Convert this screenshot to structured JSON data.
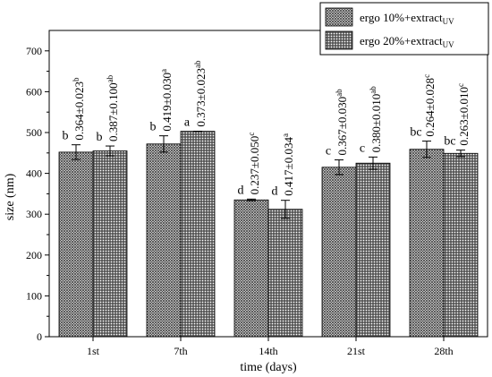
{
  "chart_data": {
    "type": "bar",
    "xlabel": "time (days)",
    "ylabel": "size (nm)",
    "ylim": [
      0,
      750
    ],
    "yticks": [
      0,
      100,
      200,
      300,
      400,
      500,
      600,
      700
    ],
    "categories": [
      "1st",
      "7th",
      "14th",
      "21st",
      "28th"
    ],
    "series": [
      {
        "name": "ergo 10%+extract",
        "name_sub": "UV",
        "pattern": "cross-hatch",
        "values": [
          452,
          472,
          335,
          415,
          459
        ],
        "errors": [
          18,
          20,
          2,
          18,
          20
        ],
        "letters": [
          "b",
          "b",
          "d",
          "c",
          "bc"
        ],
        "pdi": [
          "0.364±0.023",
          "0.419±0.030",
          "0.237±0.050",
          "0.367±0.030",
          "0.264±0.028"
        ],
        "pdi_sup": [
          "b",
          "a",
          "c",
          "ab",
          "c"
        ]
      },
      {
        "name": "ergo 20%+extract",
        "name_sub": "UV",
        "pattern": "dots",
        "values": [
          455,
          503,
          312,
          425,
          449
        ],
        "errors": [
          12,
          0,
          22,
          15,
          8
        ],
        "letters": [
          "b",
          "a",
          "d",
          "c",
          "bc"
        ],
        "pdi": [
          "0.387±0.100",
          "0.373±0.023",
          "0.417±0.034",
          "0.380±0.010",
          "0.263±0.010"
        ],
        "pdi_sup": [
          "ab",
          "ab",
          "a",
          "ab",
          "c"
        ]
      }
    ],
    "legend_position": "top-right",
    "grid": false
  }
}
